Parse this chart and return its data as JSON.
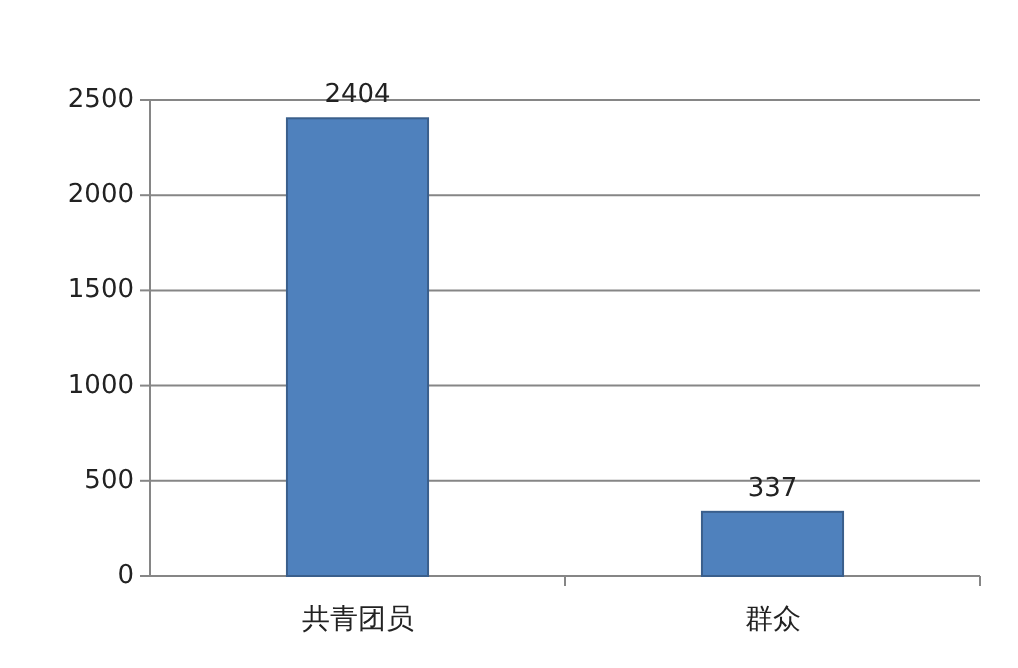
{
  "chart_data": {
    "type": "bar",
    "categories": [
      "共青团员",
      "群众"
    ],
    "values": [
      2404,
      337
    ],
    "color": "#4f81bd",
    "ylim": [
      0,
      2500
    ],
    "yticks": [
      0,
      500,
      1000,
      1500,
      2000,
      2500
    ],
    "grid": "y",
    "data_labels": true
  }
}
